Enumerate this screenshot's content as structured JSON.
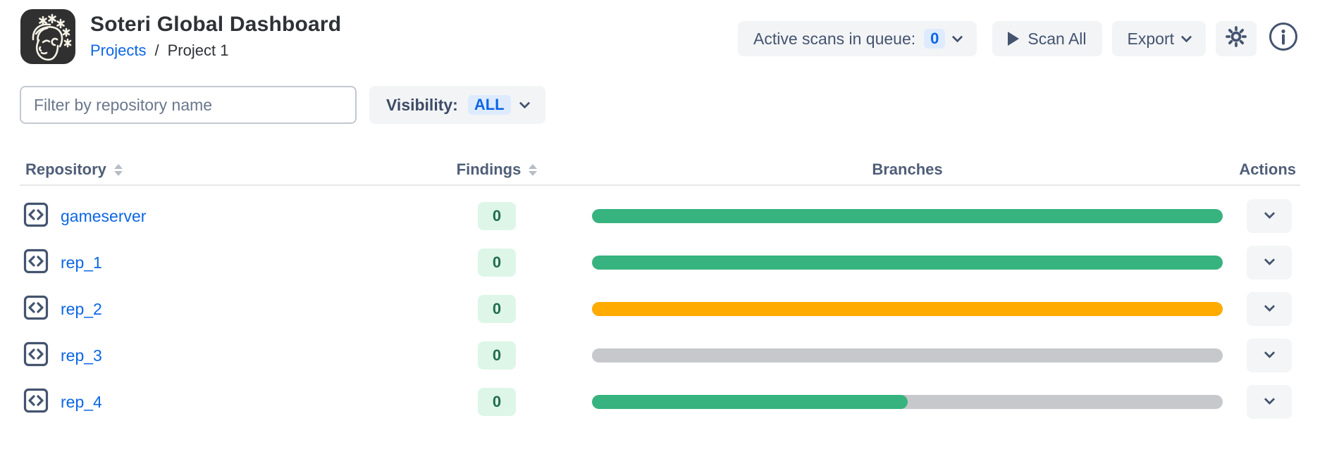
{
  "header": {
    "title": "Soteri Global Dashboard",
    "breadcrumb": {
      "projects": "Projects",
      "separator": "/",
      "current": "Project 1"
    },
    "queue_button": {
      "label": "Active scans in queue:",
      "count": "0"
    },
    "scan_all_label": "Scan All",
    "export_label": "Export"
  },
  "filters": {
    "search_placeholder": "Filter by repository name",
    "visibility_label": "Visibility:",
    "visibility_value": "ALL"
  },
  "table": {
    "columns": {
      "repository": "Repository",
      "findings": "Findings",
      "branches": "Branches",
      "actions": "Actions"
    },
    "rows": [
      {
        "name": "gameserver",
        "findings": "0",
        "branch_progress": 100,
        "bar_color": "#36b37e"
      },
      {
        "name": "rep_1",
        "findings": "0",
        "branch_progress": 100,
        "bar_color": "#36b37e"
      },
      {
        "name": "rep_2",
        "findings": "0",
        "branch_progress": 100,
        "bar_color": "#ffab00"
      },
      {
        "name": "rep_3",
        "findings": "0",
        "branch_progress": 0,
        "bar_color": "#c6c8cb"
      },
      {
        "name": "rep_4",
        "findings": "0",
        "branch_progress": 50,
        "bar_color": "#36b37e"
      }
    ]
  },
  "icons": {
    "logo": "soteri-face-logo",
    "queue_chevron": "chevron-down",
    "scan_all": "play",
    "export_chevron": "chevron-down",
    "settings": "gear",
    "information": "info-circle",
    "repository": "code-brackets",
    "row_action": "chevron-down"
  },
  "colors": {
    "link_blue": "#0c66e4",
    "slate_text": "#44546f",
    "button_bg": "#f3f4f6",
    "count_badge_bg": "#deebff",
    "findings_badge_bg": "#ddf6e8",
    "findings_badge_text": "#216e4e",
    "bar_green": "#36b37e",
    "bar_amber": "#ffab00",
    "bar_gray": "#c6c8cb"
  }
}
